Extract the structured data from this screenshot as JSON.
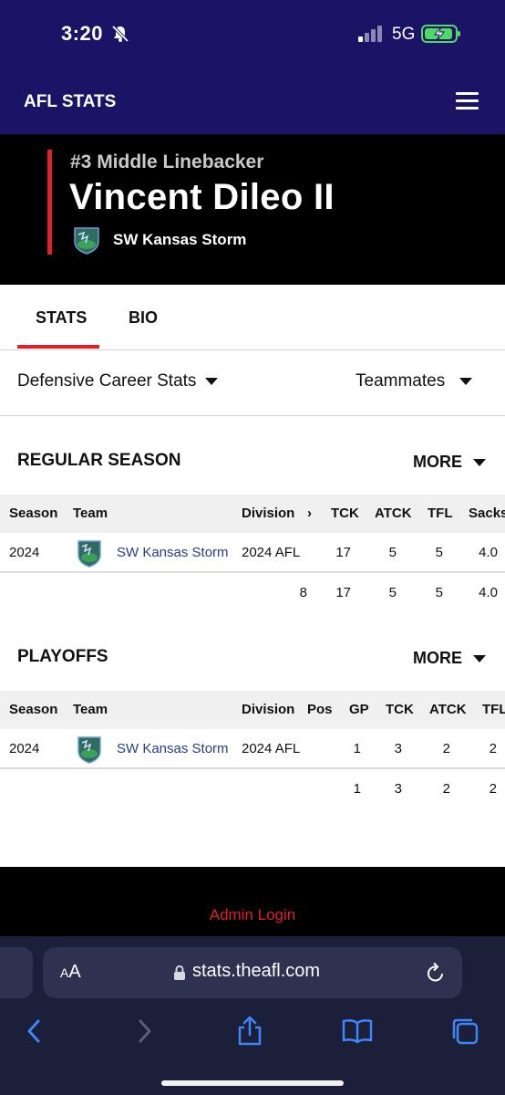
{
  "status_bar": {
    "time": "3:20",
    "network": "5G"
  },
  "header": {
    "brand": "AFL STATS"
  },
  "player": {
    "position": "#3 Middle Linebacker",
    "name": "Vincent Dileo II",
    "team": "SW Kansas Storm"
  },
  "tabs": [
    {
      "label": "STATS",
      "active": true
    },
    {
      "label": "BIO",
      "active": false
    }
  ],
  "filters": {
    "stat_type": "Defensive Career Stats",
    "teammates": "Teammates"
  },
  "regular_season": {
    "title": "REGULAR SEASON",
    "more": "MORE",
    "headers": [
      "Season",
      "Team",
      "Division",
      "›",
      "TCK",
      "ATCK",
      "TFL",
      "Sacks"
    ],
    "row": {
      "season": "2024",
      "team": "SW Kansas Storm",
      "division": "2024 AFL",
      "tck": "17",
      "atck": "5",
      "tfl": "5",
      "sacks": "4.0"
    },
    "totals": {
      "col": "8",
      "tck": "17",
      "atck": "5",
      "tfl": "5",
      "sacks": "4.0"
    }
  },
  "playoffs": {
    "title": "PLAYOFFS",
    "more": "MORE",
    "headers": [
      "Season",
      "Team",
      "Division",
      "Pos",
      "GP",
      "TCK",
      "ATCK",
      "TFL"
    ],
    "row": {
      "season": "2024",
      "team": "SW Kansas Storm",
      "division": "2024 AFL",
      "pos": "",
      "gp": "1",
      "tck": "3",
      "atck": "2",
      "tfl": "2"
    },
    "totals": {
      "gp": "1",
      "tck": "3",
      "atck": "2",
      "tfl": "2"
    }
  },
  "footer": {
    "admin_login": "Admin Login"
  },
  "browser": {
    "aa_small": "A",
    "aa_large": "A",
    "url": "stats.theafl.com"
  },
  "colors": {
    "header_bg": "#1b1466",
    "accent_red": "#e0202a",
    "link_blue": "#2b3c86",
    "battery_green": "#4cd964"
  }
}
